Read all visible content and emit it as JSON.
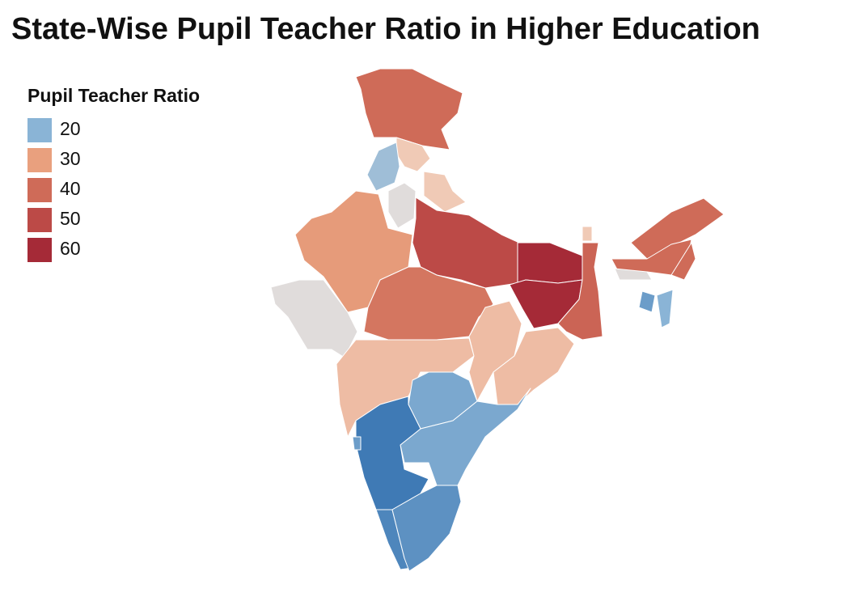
{
  "title": "State-Wise Pupil Teacher Ratio in Higher Education",
  "legend": {
    "title": "Pupil Teacher Ratio",
    "items": [
      {
        "value": 20,
        "color": "#8ab4d6"
      },
      {
        "value": 30,
        "color": "#e9a07e"
      },
      {
        "value": 40,
        "color": "#cf6b58"
      },
      {
        "value": 50,
        "color": "#bc4a47"
      },
      {
        "value": 60,
        "color": "#a52a37"
      }
    ]
  },
  "map": {
    "type": "choropleth",
    "values": [
      40,
      27,
      21,
      27,
      24,
      31,
      24,
      50,
      38,
      28,
      28,
      28,
      60,
      60,
      42,
      19,
      19,
      14,
      16,
      17,
      40,
      40,
      24,
      40,
      20,
      18,
      27,
      18
    ]
  }
}
